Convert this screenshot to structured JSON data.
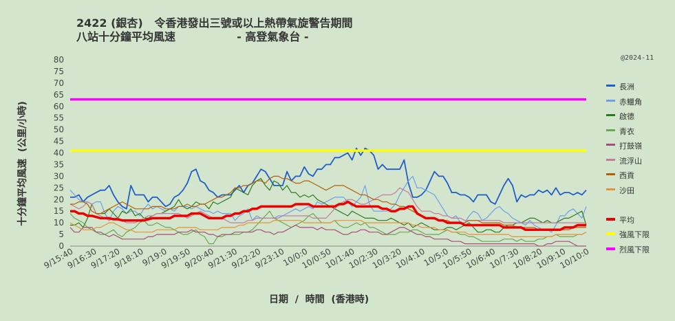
{
  "chart_data": {
    "type": "line",
    "title_line1": "2422 (銀杏)   令香港發出三號或以上熱帶氣旋警告期間",
    "title_line2": "八站十分鐘平均風速                - 高登氣象台 -",
    "stamp": "@2024-11",
    "ylabel": "十分鐘平均風速  (公里/小時)",
    "xlabel": "日期  /  時間  (香港時)",
    "ylim": [
      0,
      80
    ],
    "yticks": [
      0,
      5,
      10,
      15,
      20,
      25,
      30,
      35,
      40,
      45,
      50,
      55,
      60,
      65,
      70,
      75,
      80
    ],
    "grid": false,
    "legend_position": "right",
    "x_tick_labels": [
      "9/15:40",
      "9/16:30",
      "9/17:20",
      "9/18:10",
      "9/19:0",
      "9/19:50",
      "9/20:40",
      "9/21:30",
      "9/22:20",
      "9/23:10",
      "10/0:0",
      "10/0:50",
      "10/1:40",
      "10/2:30",
      "10/3:20",
      "10/4:10",
      "10/5:0",
      "10/5:50",
      "10/6:40",
      "10/7:30",
      "10/8:20",
      "10/9:10",
      "10/10:0"
    ],
    "series": [
      {
        "name": "長洲",
        "color": "#1f5cc9",
        "width": 1.8,
        "values": [
          21,
          21,
          22,
          19,
          21,
          22,
          23,
          24,
          24,
          26,
          22,
          19,
          17,
          16,
          26,
          22,
          22,
          22,
          19,
          21,
          21,
          19,
          17,
          18,
          21,
          22,
          24,
          27,
          32,
          33,
          28,
          27,
          24,
          23,
          21,
          22,
          22,
          22,
          24,
          26,
          23,
          26,
          27,
          30,
          33,
          32,
          29,
          26,
          26,
          26,
          32,
          28,
          30,
          30,
          34,
          31,
          30,
          33,
          33,
          35,
          35,
          38,
          38,
          39,
          40,
          37,
          42,
          39,
          42,
          41,
          39,
          33,
          35,
          33,
          33,
          33,
          33,
          37,
          27,
          21,
          21,
          22,
          24,
          28,
          32,
          30,
          30,
          27,
          23,
          23,
          22,
          22,
          21,
          19,
          22,
          22,
          22,
          19,
          18,
          22,
          26,
          29,
          26,
          19,
          22,
          21,
          22,
          22,
          24,
          23,
          24,
          22,
          25,
          22,
          23,
          23,
          22,
          23,
          22,
          24
        ]
      },
      {
        "name": "赤鱲角",
        "color": "#6d9eeb",
        "width": 1.2,
        "values": [
          24,
          22,
          20,
          19,
          19,
          18,
          19,
          19,
          14,
          11,
          15,
          17,
          16,
          14,
          15,
          15,
          13,
          16,
          18,
          16,
          17,
          16,
          15,
          16,
          15,
          17,
          17,
          17,
          16,
          17,
          16,
          15,
          15,
          14,
          15,
          14,
          14,
          14,
          11,
          13,
          14,
          16,
          11,
          13,
          12,
          12,
          12,
          12,
          13,
          13,
          14,
          15,
          16,
          15,
          16,
          17,
          16,
          19,
          18,
          19,
          20,
          21,
          21,
          21,
          19,
          17,
          19,
          21,
          26,
          18,
          15,
          15,
          15,
          15,
          16,
          18,
          22,
          25,
          28,
          30,
          25,
          25,
          24,
          23,
          22,
          19,
          16,
          13,
          12,
          13,
          10,
          10,
          13,
          15,
          14,
          11,
          12,
          14,
          16,
          17,
          15,
          14,
          12,
          11,
          10,
          9,
          11,
          9,
          8,
          7,
          7,
          6,
          9,
          13,
          13,
          15,
          16,
          14,
          12,
          17
        ]
      },
      {
        "name": "啟德",
        "color": "#2a7a1e",
        "width": 1.2,
        "values": [
          9,
          9,
          10,
          8,
          12,
          18,
          14,
          14,
          14,
          16,
          14,
          12,
          15,
          14,
          16,
          13,
          14,
          12,
          12,
          13,
          14,
          14,
          15,
          16,
          17,
          20,
          17,
          16,
          17,
          19,
          18,
          18,
          16,
          19,
          18,
          19,
          20,
          21,
          25,
          24,
          23,
          22,
          26,
          28,
          29,
          26,
          24,
          28,
          27,
          24,
          26,
          23,
          23,
          21,
          22,
          21,
          22,
          20,
          19,
          18,
          17,
          16,
          15,
          14,
          13,
          15,
          14,
          13,
          12,
          12,
          12,
          11,
          11,
          11,
          12,
          11,
          10,
          9,
          10,
          8,
          9,
          10,
          9,
          8,
          7,
          7,
          7,
          8,
          8,
          7,
          8,
          9,
          10,
          8,
          6,
          6,
          7,
          7,
          6,
          6,
          8,
          9,
          9,
          10,
          10,
          11,
          12,
          12,
          11,
          10,
          11,
          10,
          10,
          11,
          12,
          12,
          13,
          14,
          15,
          9
        ]
      },
      {
        "name": "青衣",
        "color": "#6aa84f",
        "width": 1.2,
        "values": [
          14,
          12,
          11,
          10,
          8,
          7,
          6,
          5,
          5,
          6,
          7,
          5,
          4,
          6,
          7,
          8,
          10,
          11,
          9,
          9,
          10,
          9,
          8,
          8,
          7,
          6,
          5,
          5,
          6,
          7,
          5,
          4,
          1,
          1,
          4,
          4,
          5,
          5,
          5,
          5,
          6,
          6,
          7,
          9,
          11,
          13,
          15,
          12,
          11,
          10,
          9,
          8,
          9,
          10,
          11,
          13,
          14,
          12,
          10,
          10,
          10,
          11,
          9,
          8,
          8,
          9,
          10,
          9,
          10,
          8,
          8,
          7,
          6,
          5,
          5,
          5,
          6,
          6,
          6,
          7,
          7,
          6,
          5,
          5,
          5,
          5,
          6,
          7,
          6,
          6,
          5,
          5,
          4,
          4,
          3,
          2,
          2,
          2,
          2,
          2,
          3,
          3,
          3,
          2,
          3,
          2,
          2,
          2,
          3,
          3,
          4,
          4,
          5,
          4,
          4,
          4,
          4,
          5,
          5,
          6
        ]
      },
      {
        "name": "打鼓嶺",
        "color": "#a64d79",
        "width": 1.2,
        "values": [
          8,
          6,
          6,
          8,
          8,
          8,
          6,
          6,
          5,
          4,
          5,
          4,
          3,
          3,
          3,
          3,
          3,
          3,
          4,
          4,
          5,
          5,
          5,
          5,
          5,
          6,
          6,
          6,
          7,
          6,
          6,
          6,
          5,
          5,
          4,
          5,
          5,
          5,
          6,
          6,
          6,
          6,
          6,
          7,
          7,
          6,
          6,
          5,
          6,
          6,
          7,
          8,
          9,
          8,
          8,
          8,
          8,
          7,
          8,
          7,
          7,
          7,
          6,
          5,
          5,
          6,
          6,
          7,
          7,
          6,
          6,
          6,
          5,
          5,
          6,
          7,
          8,
          8,
          7,
          6,
          5,
          5,
          4,
          4,
          3,
          3,
          3,
          3,
          2,
          2,
          2,
          1,
          1,
          1,
          1,
          1,
          1,
          1,
          1,
          1,
          1,
          1,
          1,
          1,
          1,
          1,
          1,
          1,
          0,
          0,
          1,
          1,
          2,
          2,
          2,
          2,
          1,
          0,
          0,
          0
        ]
      },
      {
        "name": "流浮山",
        "color": "#c27ba0",
        "width": 1.2,
        "values": [
          18,
          17,
          16,
          17,
          19,
          18,
          14,
          13,
          12,
          11,
          12,
          12,
          11,
          10,
          10,
          10,
          11,
          12,
          13,
          13,
          14,
          14,
          14,
          14,
          14,
          14,
          13,
          12,
          13,
          14,
          15,
          14,
          13,
          12,
          12,
          12,
          11,
          10,
          10,
          10,
          10,
          11,
          11,
          12,
          12,
          12,
          12,
          12,
          12,
          13,
          13,
          13,
          13,
          13,
          13,
          13,
          12,
          12,
          12,
          12,
          14,
          16,
          18,
          19,
          20,
          20,
          19,
          18,
          18,
          19,
          20,
          21,
          22,
          22,
          22,
          23,
          25,
          24,
          23,
          20,
          17,
          15,
          15,
          15,
          14,
          14,
          13,
          13,
          12,
          12,
          12,
          11,
          11,
          11,
          11,
          11,
          11,
          11,
          11,
          11,
          10,
          10,
          10,
          10,
          10,
          10,
          10,
          10,
          10,
          10,
          10,
          10,
          10,
          10,
          10,
          10,
          10,
          10,
          10,
          10
        ]
      },
      {
        "name": "西貢",
        "color": "#b45f06",
        "width": 1.2,
        "values": [
          18,
          18,
          19,
          19,
          18,
          15,
          14,
          14,
          15,
          16,
          17,
          18,
          19,
          18,
          17,
          16,
          16,
          16,
          16,
          17,
          17,
          17,
          16,
          16,
          16,
          17,
          17,
          18,
          17,
          17,
          18,
          18,
          19,
          20,
          21,
          21,
          22,
          23,
          25,
          25,
          26,
          26,
          27,
          28,
          28,
          27,
          29,
          30,
          30,
          29,
          29,
          28,
          27,
          27,
          28,
          28,
          27,
          26,
          25,
          24,
          25,
          26,
          26,
          26,
          25,
          24,
          23,
          22,
          22,
          21,
          20,
          20,
          19,
          19,
          18,
          18,
          17,
          17,
          16,
          15,
          14,
          13,
          12,
          12,
          12,
          11,
          11,
          11,
          10,
          10,
          10,
          10,
          11,
          11,
          11,
          10,
          10,
          10,
          10,
          10,
          9,
          9,
          9,
          8,
          8,
          8,
          8,
          8,
          7,
          7,
          7,
          7,
          7,
          7,
          7,
          7,
          8,
          8,
          8,
          8
        ]
      },
      {
        "name": "沙田",
        "color": "#e69138",
        "width": 1.2,
        "values": [
          10,
          9,
          8,
          7,
          7,
          7,
          8,
          8,
          9,
          10,
          10,
          9,
          8,
          7,
          7,
          6,
          6,
          6,
          6,
          6,
          7,
          7,
          7,
          7,
          7,
          8,
          8,
          8,
          8,
          8,
          7,
          7,
          7,
          7,
          7,
          8,
          8,
          8,
          8,
          9,
          9,
          10,
          10,
          10,
          10,
          10,
          10,
          11,
          11,
          11,
          11,
          11,
          11,
          11,
          10,
          10,
          10,
          10,
          10,
          10,
          10,
          11,
          11,
          11,
          11,
          11,
          11,
          11,
          10,
          10,
          10,
          10,
          10,
          10,
          10,
          10,
          10,
          10,
          10,
          9,
          9,
          8,
          8,
          8,
          8,
          7,
          7,
          7,
          6,
          6,
          6,
          6,
          5,
          5,
          5,
          5,
          5,
          5,
          5,
          5,
          5,
          5,
          4,
          4,
          4,
          4,
          4,
          4,
          4,
          4,
          4,
          4,
          5,
          5,
          5,
          5,
          5,
          5,
          5,
          6
        ]
      },
      {
        "name": "平均",
        "color": "#ee0000",
        "width": 3.5,
        "values": [
          15,
          15,
          14,
          14,
          13,
          13,
          12.5,
          12,
          12,
          12,
          11.5,
          11.5,
          11,
          11,
          11,
          11,
          11,
          11,
          11.5,
          12,
          12,
          12,
          12,
          12,
          13,
          13,
          13,
          13,
          14,
          14,
          14,
          13,
          12,
          12,
          12,
          12,
          13,
          13,
          14,
          14,
          15,
          15,
          16,
          16,
          17,
          17,
          17,
          17,
          17,
          17,
          17,
          17,
          18,
          18,
          18,
          18,
          17,
          17,
          17,
          17,
          17,
          17,
          18,
          18,
          19,
          18,
          17,
          17,
          17,
          17,
          17,
          17,
          16,
          16,
          15,
          15,
          16,
          16,
          17,
          17,
          14,
          13,
          12,
          12,
          12,
          11,
          11,
          10,
          10,
          10,
          10,
          9,
          9,
          9,
          9,
          9,
          9,
          9,
          9,
          9,
          8,
          8,
          8,
          8,
          8,
          7,
          7,
          7,
          7,
          7,
          7,
          7,
          7,
          7,
          8,
          8,
          8,
          9,
          9,
          9
        ]
      },
      {
        "name": "強風下限",
        "color": "#ffff00",
        "width": 3.5,
        "values": [
          41,
          41
        ]
      },
      {
        "name": "烈風下限",
        "color": "#ff00ff",
        "width": 3.5,
        "values": [
          63,
          63
        ]
      }
    ]
  }
}
